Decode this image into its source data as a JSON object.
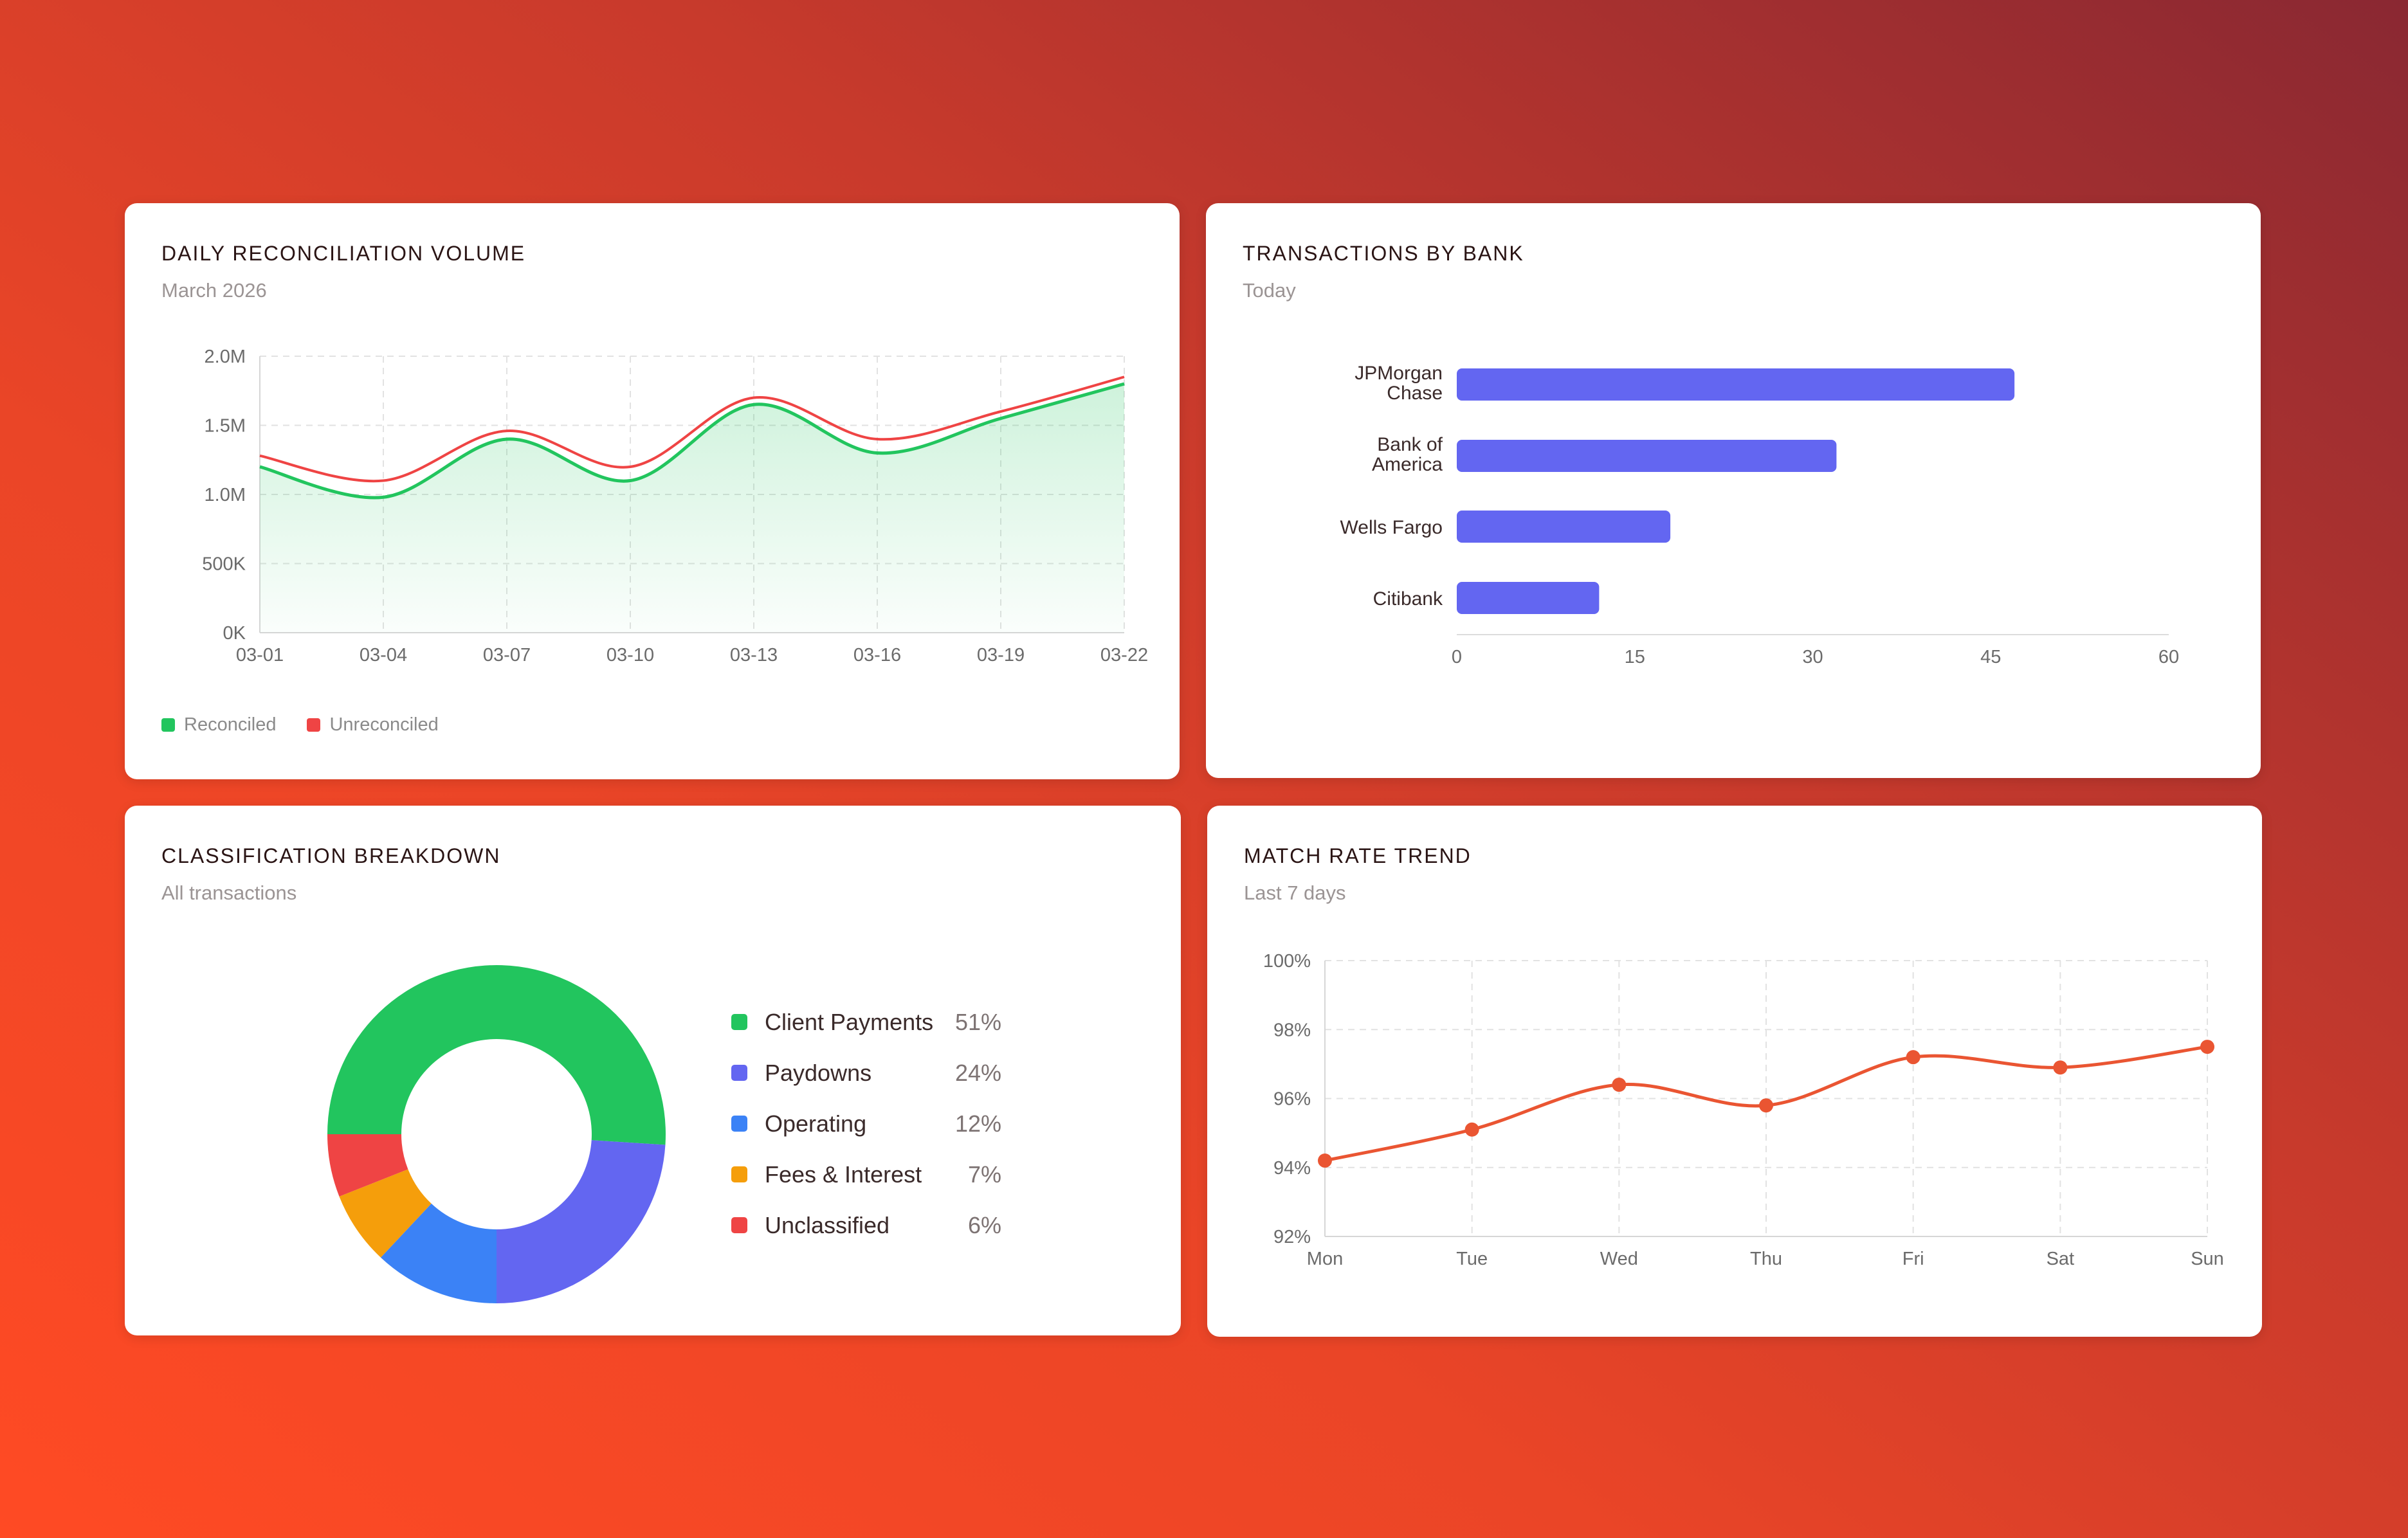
{
  "colors": {
    "reconciled": "#22c55e",
    "unreconciled": "#ef4444",
    "bank_bar": "#6366f1",
    "match_line": "#ea5532",
    "grid": "#e2e2e2",
    "axis_text": "#6b6b6b"
  },
  "panels": {
    "volume": {
      "title": "DAILY RECONCILIATION VOLUME",
      "subtitle": "March 2026"
    },
    "bank": {
      "title": "TRANSACTIONS BY BANK",
      "subtitle": "Today"
    },
    "classification": {
      "title": "CLASSIFICATION BREAKDOWN",
      "subtitle": "All transactions"
    },
    "match": {
      "title": "MATCH RATE TREND",
      "subtitle": "Last 7 days"
    }
  },
  "chart_data": [
    {
      "id": "volume",
      "type": "area",
      "title": "DAILY RECONCILIATION VOLUME",
      "subtitle": "March 2026",
      "x": [
        "03-01",
        "03-04",
        "03-07",
        "03-10",
        "03-13",
        "03-16",
        "03-19",
        "03-22"
      ],
      "series": [
        {
          "name": "Reconciled",
          "values": [
            1200000,
            980000,
            1400000,
            1100000,
            1650000,
            1300000,
            1550000,
            1800000
          ]
        },
        {
          "name": "Unreconciled",
          "values": [
            1280000,
            1100000,
            1460000,
            1200000,
            1700000,
            1400000,
            1600000,
            1850000
          ]
        }
      ],
      "y_ticks": [
        "0K",
        "500K",
        "1.0M",
        "1.5M",
        "2.0M"
      ],
      "ylim": [
        0,
        2000000
      ],
      "grid": true,
      "legend": "bottom-left"
    },
    {
      "id": "bank",
      "type": "bar",
      "orientation": "horizontal",
      "title": "TRANSACTIONS BY BANK",
      "subtitle": "Today",
      "categories": [
        "JPMorgan Chase",
        "Bank of America",
        "Wells Fargo",
        "Citibank"
      ],
      "values": [
        47,
        32,
        18,
        12
      ],
      "x_ticks": [
        "0",
        "15",
        "30",
        "45",
        "60"
      ],
      "xlim": [
        0,
        60
      ],
      "grid": false
    },
    {
      "id": "classification",
      "type": "pie",
      "style": "donut",
      "title": "CLASSIFICATION BREAKDOWN",
      "subtitle": "All transactions",
      "slices": [
        {
          "label": "Client Payments",
          "value": 51,
          "display": "51%",
          "color": "#22c55e"
        },
        {
          "label": "Paydowns",
          "value": 24,
          "display": "24%",
          "color": "#6366f1"
        },
        {
          "label": "Operating",
          "value": 12,
          "display": "12%",
          "color": "#3b82f6"
        },
        {
          "label": "Fees & Interest",
          "value": 7,
          "display": "7%",
          "color": "#f59e0b"
        },
        {
          "label": "Unclassified",
          "value": 6,
          "display": "6%",
          "color": "#ef4444"
        }
      ],
      "legend": "right"
    },
    {
      "id": "match",
      "type": "line",
      "title": "MATCH RATE TREND",
      "subtitle": "Last 7 days",
      "categories": [
        "Mon",
        "Tue",
        "Wed",
        "Thu",
        "Fri",
        "Sat",
        "Sun"
      ],
      "series": [
        {
          "values": [
            94.2,
            95.1,
            96.4,
            95.8,
            97.2,
            96.9,
            97.5
          ]
        }
      ],
      "y_ticks": [
        "92%",
        "94%",
        "96%",
        "98%",
        "100%"
      ],
      "ylim": [
        92,
        100
      ],
      "grid": true
    }
  ]
}
